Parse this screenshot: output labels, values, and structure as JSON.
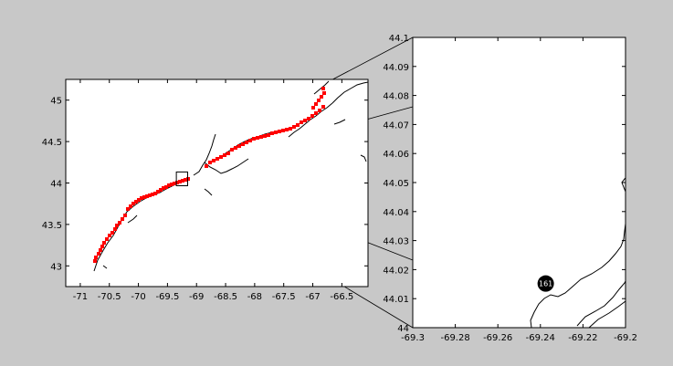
{
  "chart_data": [
    {
      "type": "map",
      "xlim": [
        -71.25,
        -66.05
      ],
      "ylim": [
        42.75,
        45.25
      ],
      "x_ticks": [
        "-71",
        "-70.5",
        "-70",
        "-69.5",
        "-69",
        "-68.5",
        "-68",
        "-67.5",
        "-67",
        "-66.5"
      ],
      "x_tick_values": [
        -71,
        -70.5,
        -70,
        -69.5,
        -69,
        -68.5,
        -68,
        -67.5,
        -67,
        -66.5
      ],
      "y_ticks": [
        "43",
        "43.5",
        "44",
        "44.5",
        "45"
      ],
      "y_tick_values": [
        43,
        43.5,
        44,
        44.5,
        45
      ],
      "grid": false,
      "coastline_color": "#000000",
      "marker_color": "#ff0000",
      "zoom_box": {
        "lon": [
          -69.3,
          -69.2
        ],
        "lat": [
          44.0,
          44.1
        ]
      },
      "upper_box": {
        "lon": [
          -67.2,
          -66.8
        ],
        "lat": [
          44.75,
          45.05
        ]
      }
    },
    {
      "type": "map",
      "xlim": [
        -69.3,
        -69.2
      ],
      "ylim": [
        44.0,
        44.1
      ],
      "x_ticks": [
        "-69.3",
        "-69.28",
        "-69.26",
        "-69.24",
        "-69.22",
        "-69.2"
      ],
      "x_tick_values": [
        -69.3,
        -69.28,
        -69.26,
        -69.24,
        -69.22,
        -69.2
      ],
      "y_ticks": [
        "44",
        "44.01",
        "44.02",
        "44.03",
        "44.04",
        "44.05",
        "44.06",
        "44.07",
        "44.08",
        "44.09",
        "44.1"
      ],
      "y_tick_values": [
        44.0,
        44.01,
        44.02,
        44.03,
        44.04,
        44.05,
        44.06,
        44.07,
        44.08,
        44.09,
        44.1
      ],
      "grid": false,
      "marker": {
        "label": "161",
        "lon": -69.2375,
        "lat": 44.0152,
        "color": "#000000"
      }
    }
  ]
}
